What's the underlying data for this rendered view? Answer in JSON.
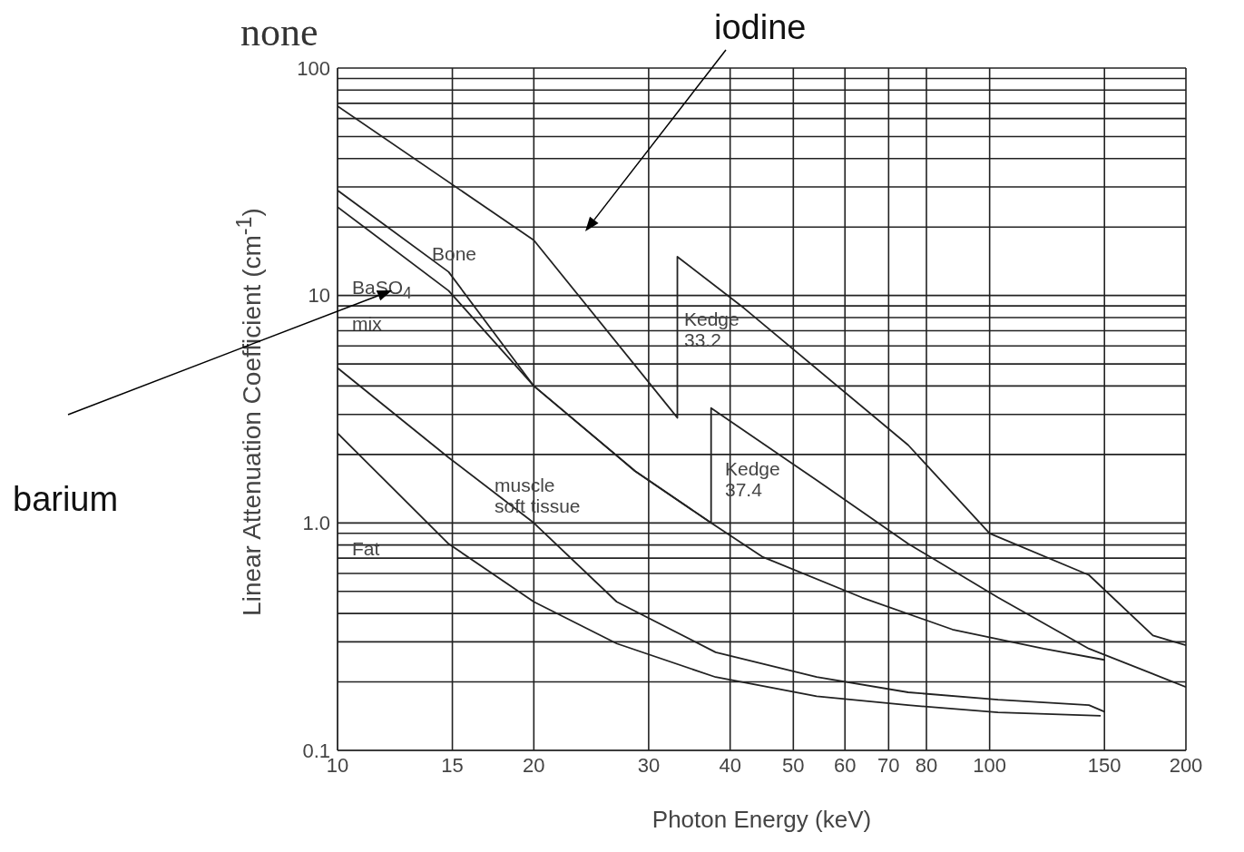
{
  "chart_data": {
    "type": "line",
    "title": "none",
    "xlabel": "Photon Energy (keV)",
    "ylabel": "Linear Attenuation Coefficient (cm$^{-1}$)",
    "log": "xy",
    "grid": true,
    "marker": "none",
    "line_style": "solid",
    "xlim": [
      10,
      200
    ],
    "xticks": [
      10,
      15,
      20,
      30,
      40,
      50,
      60,
      70,
      80,
      100,
      150,
      200
    ],
    "ylim": [
      0.1,
      100
    ],
    "yticks": [
      0.1,
      {
        "value": 0.2,
        "label": null
      },
      {
        "value": 0.3,
        "label": null
      },
      {
        "value": 0.4,
        "label": null
      },
      {
        "value": 0.5,
        "label": null
      },
      {
        "value": 0.6,
        "label": null
      },
      {
        "value": 0.7,
        "label": null
      },
      {
        "value": 0.8,
        "label": null
      },
      {
        "value": 0.9,
        "label": null
      },
      {
        "value": 1,
        "label": "1.0"
      },
      {
        "value": 2,
        "label": null
      },
      {
        "value": 3,
        "label": null
      },
      {
        "value": 4,
        "label": null
      },
      {
        "value": 5,
        "label": null
      },
      {
        "value": 6,
        "label": null
      },
      {
        "value": 7,
        "label": null
      },
      {
        "value": 8,
        "label": null
      },
      {
        "value": 9,
        "label": null
      },
      10,
      {
        "value": 20,
        "label": null
      },
      {
        "value": 30,
        "label": null
      },
      {
        "value": 40,
        "label": null
      },
      {
        "value": 50,
        "label": null
      },
      {
        "value": 60,
        "label": null
      },
      {
        "value": 70,
        "label": null
      },
      {
        "value": 80,
        "label": null
      },
      {
        "value": 90,
        "label": null
      },
      100
    ],
    "series": [
      {
        "color": "#222222",
        "x": [
          10,
          20,
          33.2,
          33.2,
          42,
          75,
          100,
          142,
          178,
          200
        ],
        "values": [
          68,
          17.5,
          2.9,
          14.8,
          8.8,
          2.2,
          0.9,
          0.59,
          0.32,
          0.29
        ]
      },
      {
        "color": "#222222",
        "x": [
          10,
          14.8,
          20,
          28.6,
          37.4,
          44.8,
          63.7,
          87.7,
          121,
          150
        ],
        "values": [
          29,
          12.7,
          4.0,
          1.69,
          1.0,
          0.71,
          0.47,
          0.34,
          0.28,
          0.25
        ]
      },
      {
        "color": "#222222",
        "x": [
          10,
          14.8,
          20,
          28.6,
          37.4,
          37.4,
          54.3,
          75,
          103,
          142,
          200
        ],
        "values": [
          24.5,
          10.5,
          4.0,
          1.69,
          1.0,
          3.2,
          1.54,
          0.81,
          0.47,
          0.28,
          0.19
        ]
      },
      {
        "color": "#222222",
        "x": [
          10,
          14.8,
          20,
          26.8,
          38,
          54.3,
          75,
          103,
          142,
          150
        ],
        "values": [
          4.8,
          1.94,
          1.0,
          0.45,
          0.27,
          0.21,
          0.18,
          0.167,
          0.158,
          0.148
        ]
      },
      {
        "color": "#222222",
        "x": [
          10,
          14.8,
          20,
          26.8,
          38,
          54.3,
          75,
          103,
          148
        ],
        "values": [
          2.48,
          0.81,
          0.45,
          0.295,
          0.21,
          0.173,
          0.158,
          0.147,
          0.142
        ]
      }
    ],
    "annotations": [
      "iodine",
      "barium",
      "Bone",
      "BaSO$_{4}$",
      "mix",
      "Kedge 33.2",
      "Kedge 37.4",
      "muscle soft tissue",
      "Fat"
    ]
  }
}
